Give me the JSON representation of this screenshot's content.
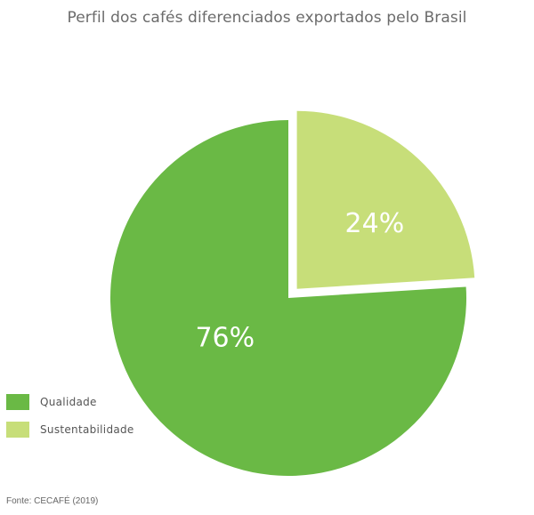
{
  "chart_data": {
    "type": "pie",
    "title": "Perfil dos cafés diferenciados exportados pelo Brasil",
    "categories": [
      "Qualidade",
      "Sustentabilidade"
    ],
    "values": [
      76,
      24
    ],
    "data_labels": [
      "76%",
      "24%"
    ],
    "colors": [
      "#6ab945",
      "#c7de79"
    ],
    "exploded": "Sustentabilidade",
    "legend_position": "bottom-left"
  },
  "source": "Fonte: CECAFÉ (2019)"
}
